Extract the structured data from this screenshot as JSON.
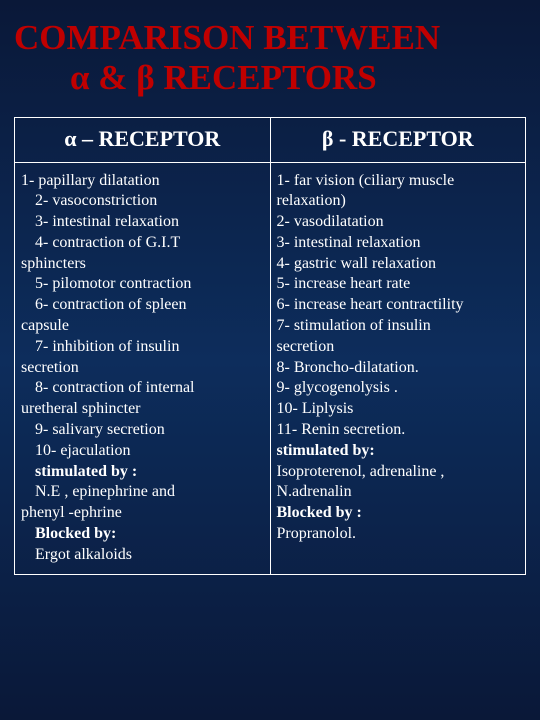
{
  "title_line1": "COMPARISON BETWEEN",
  "title_line2": "α & β RECEPTORS",
  "headers": {
    "alpha": "α – RECEPTOR",
    "beta": "β - RECEPTOR"
  },
  "alpha": {
    "l1": "1- papillary dilatation",
    "l2": "2- vasoconstriction",
    "l3": "3- intestinal relaxation",
    "l4": "4- contraction of G.I.T",
    "l5": "sphincters",
    "l6": "5- pilomotor contraction",
    "l7": "6- contraction of spleen",
    "l8": "capsule",
    "l9": "7- inhibition of insulin",
    "l10": "secretion",
    "l11": "8- contraction of internal",
    "l12": "uretheral sphincter",
    "l13": "9- salivary secretion",
    "l14": "10- ejaculation",
    "l15": "stimulated by :",
    "l16": "N.E , epinephrine and",
    "l17": "phenyl -ephrine",
    "l18": "Blocked by:",
    "l19": "Ergot alkaloids"
  },
  "beta": {
    "l1": "1- far vision (ciliary muscle",
    "l2": "relaxation)",
    "l3": "2- vasodilatation",
    "l4": "3- intestinal relaxation",
    "l5": "4- gastric wall relaxation",
    "l6": "5- increase heart rate",
    "l7": "6- increase heart contractility",
    "l8": "7- stimulation of insulin",
    "l9": "secretion",
    "l10": "8- Broncho-dilatation.",
    "l11": "9- glycogenolysis .",
    "l12": "10- Liplysis",
    "l13": "11- Renin secretion.",
    "l14": "stimulated by:",
    "l15": "Isoproterenol, adrenaline ,",
    "l16": "N.adrenalin",
    "l17": "Blocked by :",
    "l18": "Propranolol."
  }
}
